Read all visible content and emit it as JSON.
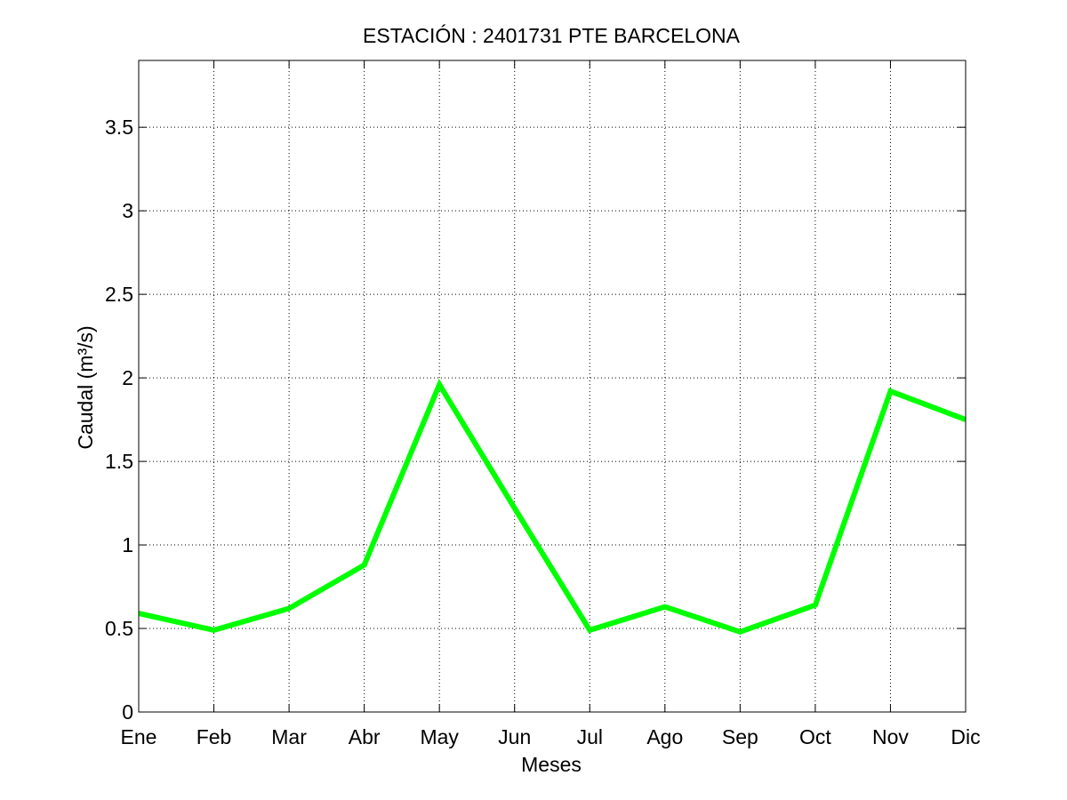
{
  "chart_data": {
    "type": "line",
    "title": "ESTACIÓN :  2401731  PTE BARCELONA",
    "xlabel": "Meses",
    "ylabel": "Caudal (m³/s)",
    "categories": [
      "Ene",
      "Feb",
      "Mar",
      "Abr",
      "May",
      "Jun",
      "Jul",
      "Ago",
      "Sep",
      "Oct",
      "Nov",
      "Dic"
    ],
    "series": [
      {
        "values": [
          0.59,
          0.49,
          0.62,
          0.88,
          1.96,
          1.22,
          0.49,
          0.63,
          0.48,
          0.64,
          1.92,
          1.75
        ]
      }
    ],
    "ylim": [
      0,
      3.9
    ],
    "yticks": [
      "0",
      "0.5",
      "1",
      "1.5",
      "2",
      "2.5",
      "3",
      "3.5"
    ],
    "grid": true,
    "colors": {
      "line": "#00ff00",
      "axes": "#000000",
      "grid": "#000000",
      "background": "#ffffff"
    }
  }
}
